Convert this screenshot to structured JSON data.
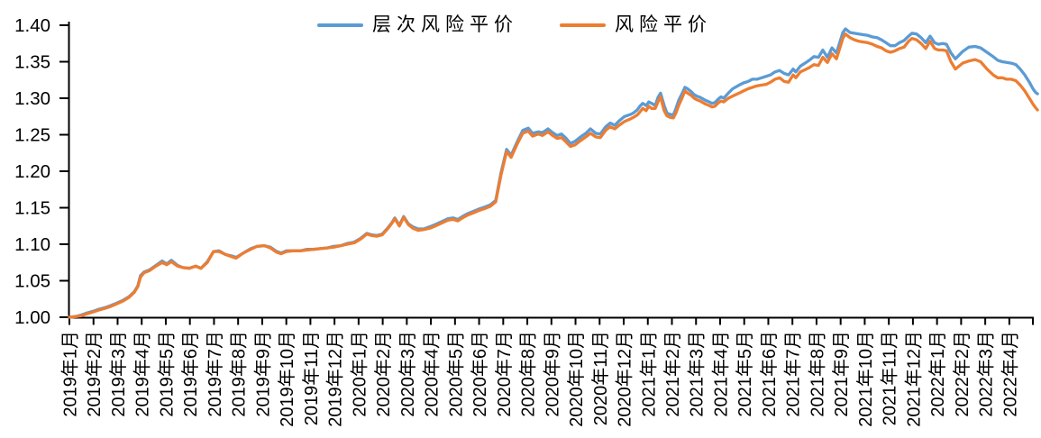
{
  "chart_data": {
    "type": "line",
    "title": "",
    "xlabel": "",
    "ylabel": "",
    "grid": false,
    "legend_position": "top-center",
    "y_axis": {
      "min": 1.0,
      "max": 1.4,
      "step": 0.05,
      "tick_labels": [
        "1.00",
        "1.05",
        "1.10",
        "1.15",
        "1.20",
        "1.25",
        "1.30",
        "1.35",
        "1.40"
      ]
    },
    "x_axis": {
      "tick_labels": [
        "2019年1月",
        "2019年2月",
        "2019年3月",
        "2019年4月",
        "2019年5月",
        "2019年6月",
        "2019年7月",
        "2019年8月",
        "2019年9月",
        "2019年10月",
        "2019年11月",
        "2019年12月",
        "2020年1月",
        "2020年2月",
        "2020年3月",
        "2020年4月",
        "2020年5月",
        "2020年6月",
        "2020年7月",
        "2020年8月",
        "2020年9月",
        "2020年10月",
        "2020年11月",
        "2020年12月",
        "2021年1月",
        "2021年2月",
        "2021年3月",
        "2021年4月",
        "2021年5月",
        "2021年6月",
        "2021年7月",
        "2021年8月",
        "2021年9月",
        "2021年10月",
        "2021年11月",
        "2021年12月",
        "2022年1月",
        "2022年2月",
        "2022年3月",
        "2022年4月"
      ]
    },
    "series": [
      {
        "name": "层次风险平价",
        "color": "#5B9BD5"
      },
      {
        "name": "风险平价",
        "color": "#ED7D31"
      }
    ],
    "points_format": [
      "months_since_2019-01_fractional_weekly",
      "层次风险平价",
      "风险平价"
    ],
    "points": [
      [
        0.0,
        1.0,
        1.0
      ],
      [
        0.26,
        1.001,
        1.001
      ],
      [
        0.49,
        1.003,
        1.002
      ],
      [
        0.75,
        1.006,
        1.005
      ],
      [
        0.97,
        1.008,
        1.007
      ],
      [
        1.23,
        1.011,
        1.01
      ],
      [
        1.46,
        1.013,
        1.012
      ],
      [
        1.72,
        1.016,
        1.015
      ],
      [
        1.94,
        1.019,
        1.018
      ],
      [
        2.21,
        1.023,
        1.022
      ],
      [
        2.47,
        1.028,
        1.027
      ],
      [
        2.69,
        1.035,
        1.034
      ],
      [
        2.84,
        1.043,
        1.042
      ],
      [
        2.95,
        1.057,
        1.055
      ],
      [
        3.1,
        1.062,
        1.061
      ],
      [
        3.33,
        1.065,
        1.064
      ],
      [
        3.59,
        1.071,
        1.07
      ],
      [
        3.85,
        1.077,
        1.075
      ],
      [
        4.04,
        1.073,
        1.072
      ],
      [
        4.23,
        1.078,
        1.076
      ],
      [
        4.49,
        1.071,
        1.07
      ],
      [
        4.71,
        1.068,
        1.068
      ],
      [
        4.97,
        1.067,
        1.067
      ],
      [
        5.24,
        1.07,
        1.07
      ],
      [
        5.46,
        1.067,
        1.067
      ],
      [
        5.72,
        1.076,
        1.075
      ],
      [
        5.98,
        1.09,
        1.09
      ],
      [
        6.21,
        1.091,
        1.09
      ],
      [
        6.47,
        1.086,
        1.086
      ],
      [
        6.73,
        1.084,
        1.083
      ],
      [
        6.92,
        1.082,
        1.081
      ],
      [
        7.22,
        1.088,
        1.088
      ],
      [
        7.52,
        1.094,
        1.093
      ],
      [
        7.78,
        1.097,
        1.097
      ],
      [
        8.08,
        1.098,
        1.098
      ],
      [
        8.34,
        1.096,
        1.095
      ],
      [
        8.6,
        1.09,
        1.089
      ],
      [
        8.79,
        1.088,
        1.087
      ],
      [
        9.01,
        1.091,
        1.09
      ],
      [
        9.27,
        1.091,
        1.091
      ],
      [
        9.57,
        1.091,
        1.091
      ],
      [
        9.84,
        1.093,
        1.092
      ],
      [
        10.13,
        1.093,
        1.093
      ],
      [
        10.4,
        1.094,
        1.094
      ],
      [
        10.7,
        1.095,
        1.095
      ],
      [
        10.96,
        1.097,
        1.096
      ],
      [
        11.26,
        1.098,
        1.098
      ],
      [
        11.52,
        1.101,
        1.1
      ],
      [
        11.82,
        1.103,
        1.102
      ],
      [
        12.08,
        1.108,
        1.107
      ],
      [
        12.34,
        1.115,
        1.114
      ],
      [
        12.53,
        1.113,
        1.112
      ],
      [
        12.75,
        1.112,
        1.111
      ],
      [
        12.98,
        1.114,
        1.113
      ],
      [
        13.2,
        1.122,
        1.121
      ],
      [
        13.39,
        1.13,
        1.129
      ],
      [
        13.5,
        1.136,
        1.135
      ],
      [
        13.69,
        1.126,
        1.125
      ],
      [
        13.87,
        1.138,
        1.137
      ],
      [
        14.06,
        1.128,
        1.127
      ],
      [
        14.25,
        1.124,
        1.122
      ],
      [
        14.47,
        1.121,
        1.119
      ],
      [
        14.7,
        1.121,
        1.12
      ],
      [
        14.96,
        1.124,
        1.122
      ],
      [
        15.18,
        1.127,
        1.125
      ],
      [
        15.45,
        1.131,
        1.129
      ],
      [
        15.71,
        1.135,
        1.133
      ],
      [
        15.93,
        1.136,
        1.134
      ],
      [
        16.12,
        1.134,
        1.132
      ],
      [
        16.31,
        1.138,
        1.136
      ],
      [
        16.53,
        1.142,
        1.14
      ],
      [
        16.76,
        1.145,
        1.143
      ],
      [
        16.98,
        1.148,
        1.146
      ],
      [
        17.24,
        1.151,
        1.149
      ],
      [
        17.47,
        1.154,
        1.152
      ],
      [
        17.69,
        1.16,
        1.158
      ],
      [
        17.91,
        1.198,
        1.195
      ],
      [
        18.14,
        1.23,
        1.227
      ],
      [
        18.33,
        1.222,
        1.219
      ],
      [
        18.59,
        1.241,
        1.238
      ],
      [
        18.81,
        1.256,
        1.252
      ],
      [
        19.04,
        1.259,
        1.255
      ],
      [
        19.22,
        1.252,
        1.248
      ],
      [
        19.45,
        1.254,
        1.251
      ],
      [
        19.63,
        1.253,
        1.249
      ],
      [
        19.86,
        1.258,
        1.254
      ],
      [
        20.05,
        1.253,
        1.249
      ],
      [
        20.23,
        1.249,
        1.245
      ],
      [
        20.42,
        1.251,
        1.246
      ],
      [
        20.61,
        1.245,
        1.24
      ],
      [
        20.79,
        1.238,
        1.234
      ],
      [
        20.98,
        1.241,
        1.236
      ],
      [
        21.21,
        1.247,
        1.242
      ],
      [
        21.43,
        1.252,
        1.247
      ],
      [
        21.62,
        1.258,
        1.252
      ],
      [
        21.84,
        1.252,
        1.247
      ],
      [
        22.03,
        1.251,
        1.246
      ],
      [
        22.25,
        1.261,
        1.256
      ],
      [
        22.44,
        1.266,
        1.261
      ],
      [
        22.63,
        1.263,
        1.258
      ],
      [
        22.81,
        1.269,
        1.263
      ],
      [
        23.03,
        1.275,
        1.268
      ],
      [
        23.3,
        1.278,
        1.272
      ],
      [
        23.41,
        1.28,
        1.274
      ],
      [
        23.56,
        1.284,
        1.277
      ],
      [
        23.67,
        1.289,
        1.281
      ],
      [
        23.79,
        1.293,
        1.286
      ],
      [
        23.93,
        1.29,
        1.283
      ],
      [
        24.04,
        1.295,
        1.289
      ],
      [
        24.16,
        1.293,
        1.286
      ],
      [
        24.31,
        1.29,
        1.286
      ],
      [
        24.42,
        1.301,
        1.295
      ],
      [
        24.53,
        1.307,
        1.302
      ],
      [
        24.68,
        1.29,
        1.283
      ],
      [
        24.79,
        1.28,
        1.276
      ],
      [
        24.91,
        1.278,
        1.274
      ],
      [
        25.06,
        1.277,
        1.273
      ],
      [
        25.17,
        1.286,
        1.28
      ],
      [
        25.28,
        1.297,
        1.29
      ],
      [
        25.43,
        1.307,
        1.301
      ],
      [
        25.54,
        1.315,
        1.31
      ],
      [
        25.65,
        1.313,
        1.307
      ],
      [
        25.8,
        1.309,
        1.304
      ],
      [
        25.92,
        1.305,
        1.3
      ],
      [
        26.03,
        1.303,
        1.298
      ],
      [
        26.18,
        1.301,
        1.296
      ],
      [
        26.29,
        1.299,
        1.294
      ],
      [
        26.4,
        1.297,
        1.292
      ],
      [
        26.55,
        1.295,
        1.29
      ],
      [
        26.66,
        1.293,
        1.288
      ],
      [
        26.78,
        1.294,
        1.289
      ],
      [
        26.93,
        1.299,
        1.294
      ],
      [
        27.04,
        1.302,
        1.296
      ],
      [
        27.15,
        1.3,
        1.295
      ],
      [
        27.34,
        1.307,
        1.3
      ],
      [
        27.52,
        1.313,
        1.303
      ],
      [
        27.79,
        1.318,
        1.307
      ],
      [
        27.97,
        1.321,
        1.31
      ],
      [
        28.16,
        1.323,
        1.313
      ],
      [
        28.34,
        1.326,
        1.315
      ],
      [
        28.53,
        1.326,
        1.317
      ],
      [
        28.72,
        1.328,
        1.318
      ],
      [
        28.91,
        1.33,
        1.319
      ],
      [
        29.09,
        1.332,
        1.322
      ],
      [
        29.28,
        1.336,
        1.326
      ],
      [
        29.47,
        1.338,
        1.328
      ],
      [
        29.66,
        1.334,
        1.323
      ],
      [
        29.84,
        1.332,
        1.322
      ],
      [
        30.03,
        1.34,
        1.332
      ],
      [
        30.14,
        1.336,
        1.328
      ],
      [
        30.33,
        1.344,
        1.336
      ],
      [
        30.52,
        1.348,
        1.339
      ],
      [
        30.7,
        1.352,
        1.342
      ],
      [
        30.89,
        1.357,
        1.346
      ],
      [
        31.08,
        1.356,
        1.345
      ],
      [
        31.26,
        1.366,
        1.356
      ],
      [
        31.45,
        1.356,
        1.349
      ],
      [
        31.64,
        1.369,
        1.361
      ],
      [
        31.83,
        1.362,
        1.354
      ],
      [
        32.09,
        1.39,
        1.382
      ],
      [
        32.2,
        1.395,
        1.388
      ],
      [
        32.39,
        1.39,
        1.383
      ],
      [
        32.57,
        1.389,
        1.38
      ],
      [
        32.76,
        1.388,
        1.378
      ],
      [
        32.94,
        1.387,
        1.377
      ],
      [
        33.13,
        1.386,
        1.376
      ],
      [
        33.32,
        1.384,
        1.374
      ],
      [
        33.51,
        1.383,
        1.371
      ],
      [
        33.7,
        1.38,
        1.369
      ],
      [
        33.88,
        1.376,
        1.365
      ],
      [
        34.07,
        1.372,
        1.363
      ],
      [
        34.26,
        1.372,
        1.365
      ],
      [
        34.44,
        1.376,
        1.368
      ],
      [
        34.63,
        1.379,
        1.37
      ],
      [
        34.82,
        1.385,
        1.378
      ],
      [
        34.96,
        1.389,
        1.382
      ],
      [
        35.15,
        1.388,
        1.38
      ],
      [
        35.34,
        1.383,
        1.375
      ],
      [
        35.53,
        1.376,
        1.368
      ],
      [
        35.71,
        1.385,
        1.378
      ],
      [
        35.9,
        1.376,
        1.368
      ],
      [
        36.05,
        1.374,
        1.366
      ],
      [
        36.24,
        1.375,
        1.366
      ],
      [
        36.39,
        1.374,
        1.365
      ],
      [
        36.58,
        1.362,
        1.35
      ],
      [
        36.76,
        1.354,
        1.34
      ],
      [
        37.06,
        1.364,
        1.348
      ],
      [
        37.32,
        1.37,
        1.351
      ],
      [
        37.58,
        1.371,
        1.353
      ],
      [
        37.81,
        1.369,
        1.35
      ],
      [
        38.07,
        1.363,
        1.34
      ],
      [
        38.33,
        1.357,
        1.332
      ],
      [
        38.52,
        1.352,
        1.328
      ],
      [
        38.71,
        1.35,
        1.328
      ],
      [
        38.89,
        1.349,
        1.326
      ],
      [
        39.08,
        1.348,
        1.326
      ],
      [
        39.27,
        1.346,
        1.324
      ],
      [
        39.45,
        1.34,
        1.318
      ],
      [
        39.64,
        1.332,
        1.31
      ],
      [
        39.83,
        1.322,
        1.3
      ],
      [
        39.98,
        1.313,
        1.292
      ],
      [
        40.09,
        1.308,
        1.287
      ],
      [
        40.17,
        1.306,
        1.284
      ]
    ]
  }
}
